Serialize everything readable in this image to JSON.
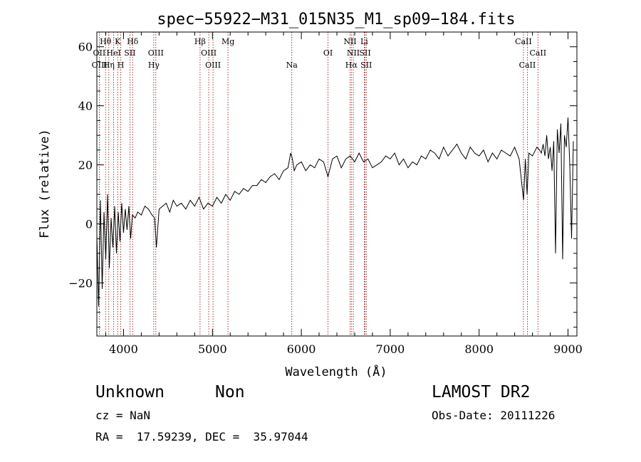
{
  "chart_data": {
    "type": "line",
    "title": "spec−55922−M31_015N35_M1_sp09−184.fits",
    "xlabel": "Wavelength (Å)",
    "ylabel": "Flux (relative)",
    "xlim": [
      3700,
      9100
    ],
    "ylim": [
      -38,
      65
    ],
    "xticks": [
      {
        "value": 4000,
        "label": "4000"
      },
      {
        "value": 5000,
        "label": "5000"
      },
      {
        "value": 6000,
        "label": "6000"
      },
      {
        "value": 7000,
        "label": "7000"
      },
      {
        "value": 8000,
        "label": "8000"
      },
      {
        "value": 9000,
        "label": "9000"
      }
    ],
    "yticks": [
      {
        "value": -20,
        "label": "−20"
      },
      {
        "value": 0,
        "label": "0"
      },
      {
        "value": 20,
        "label": "20"
      },
      {
        "value": 40,
        "label": "40"
      },
      {
        "value": 60,
        "label": "60"
      }
    ],
    "series": [
      {
        "x": [
          3700,
          3720,
          3740,
          3760,
          3780,
          3800,
          3820,
          3840,
          3860,
          3880,
          3900,
          3920,
          3940,
          3960,
          3980,
          4000,
          4020,
          4040,
          4060,
          4080,
          4100,
          4130,
          4160,
          4200,
          4240,
          4280,
          4320,
          4350,
          4370,
          4400,
          4440,
          4480,
          4520,
          4560,
          4600,
          4650,
          4700,
          4750,
          4800,
          4850,
          4900,
          4950,
          5000,
          5050,
          5100,
          5150,
          5200,
          5250,
          5300,
          5350,
          5400,
          5450,
          5500,
          5550,
          5600,
          5650,
          5700,
          5750,
          5800,
          5850,
          5880,
          5900,
          5920,
          5950,
          6000,
          6050,
          6100,
          6150,
          6200,
          6250,
          6300,
          6350,
          6400,
          6450,
          6500,
          6550,
          6600,
          6650,
          6700,
          6750,
          6800,
          6850,
          6900,
          6950,
          7000,
          7050,
          7100,
          7150,
          7200,
          7250,
          7300,
          7350,
          7400,
          7450,
          7500,
          7550,
          7600,
          7650,
          7700,
          7750,
          7800,
          7850,
          7900,
          7950,
          8000,
          8050,
          8100,
          8150,
          8200,
          8250,
          8300,
          8350,
          8400,
          8450,
          8500,
          8520,
          8540,
          8560,
          8600,
          8650,
          8680,
          8700,
          8720,
          8740,
          8760,
          8780,
          8800,
          8820,
          8840,
          8860,
          8880,
          8900,
          8920,
          8940,
          8960,
          8980,
          9000,
          9020,
          9040,
          9060
        ],
        "y": [
          -4,
          -28,
          8,
          -22,
          4,
          -12,
          10,
          -15,
          2,
          -8,
          6,
          -10,
          4,
          -6,
          7,
          -3,
          5,
          -2,
          6,
          -5,
          3,
          2,
          4,
          3,
          6,
          5,
          3,
          2,
          -8,
          5,
          6,
          7,
          4,
          8,
          6,
          7,
          5,
          8,
          6,
          9,
          5,
          7,
          6,
          9,
          7,
          10,
          8,
          11,
          10,
          12,
          11,
          13,
          13,
          15,
          14,
          16,
          17,
          15,
          18,
          19,
          24,
          22,
          18,
          20,
          21,
          18,
          20,
          19,
          22,
          21,
          16,
          22,
          23,
          19,
          22,
          23,
          21,
          24,
          21,
          22,
          19,
          20,
          21,
          23,
          22,
          24,
          20,
          22,
          19,
          21,
          20,
          23,
          22,
          25,
          24,
          22,
          26,
          23,
          25,
          27,
          24,
          22,
          26,
          24,
          23,
          25,
          21,
          24,
          22,
          25,
          24,
          23,
          26,
          22,
          8,
          22,
          10,
          24,
          23,
          26,
          25,
          24,
          27,
          23,
          30,
          22,
          26,
          18,
          28,
          -10,
          32,
          24,
          34,
          -12,
          30,
          26,
          36,
          20,
          -5,
          28
        ]
      }
    ],
    "line_labels": [
      {
        "label": "Hθ",
        "wavelength": 3798,
        "row": 1
      },
      {
        "label": "OII",
        "wavelength": 3727,
        "row": 2
      },
      {
        "label": "OIII",
        "wavelength": 3730,
        "row": 3
      },
      {
        "label": "Hη",
        "wavelength": 3835,
        "row": 3
      },
      {
        "label": "HeI",
        "wavelength": 3889,
        "row": 2
      },
      {
        "label": "K",
        "wavelength": 3934,
        "row": 1
      },
      {
        "label": "H",
        "wavelength": 3968,
        "row": 3
      },
      {
        "label": "SII",
        "wavelength": 4072,
        "row": 2
      },
      {
        "label": "Hδ",
        "wavelength": 4102,
        "row": 1
      },
      {
        "label": "OIII",
        "wavelength": 4363,
        "row": 2
      },
      {
        "label": "Hγ",
        "wavelength": 4340,
        "row": 3
      },
      {
        "label": "Hβ",
        "wavelength": 4861,
        "row": 1
      },
      {
        "label": "OIII",
        "wavelength": 4959,
        "row": 2
      },
      {
        "label": "OIII",
        "wavelength": 5007,
        "row": 3
      },
      {
        "label": "Mg",
        "wavelength": 5175,
        "row": 1
      },
      {
        "label": "Na",
        "wavelength": 5893,
        "row": 3
      },
      {
        "label": "OI",
        "wavelength": 6300,
        "row": 2
      },
      {
        "label": "NII",
        "wavelength": 6548,
        "row": 1
      },
      {
        "label": "NII",
        "wavelength": 6584,
        "row": 2
      },
      {
        "label": "Hα",
        "wavelength": 6563,
        "row": 3
      },
      {
        "label": "Li",
        "wavelength": 6708,
        "row": 1
      },
      {
        "label": "SII",
        "wavelength": 6717,
        "row": 2
      },
      {
        "label": "SII",
        "wavelength": 6731,
        "row": 3
      },
      {
        "label": "CaII",
        "wavelength": 8498,
        "row": 1
      },
      {
        "label": "CaII",
        "wavelength": 8662,
        "row": 2
      },
      {
        "label": "CaII",
        "wavelength": 8542,
        "row": 3
      }
    ],
    "line_markers": [
      3727,
      3798,
      3835,
      3889,
      3934,
      3968,
      4072,
      4102,
      4340,
      4363,
      4861,
      4959,
      5007,
      5175,
      5893,
      6300,
      6548,
      6563,
      6584,
      6708,
      6717,
      6731,
      8498,
      8542,
      8662
    ]
  },
  "footer": {
    "object_class": "Unknown",
    "subclass": "Non",
    "survey": "LAMOST DR2",
    "redshift": "cz = NaN",
    "obs_date": "Obs-Date: 20111226",
    "coords": "RA =  17.59239, DEC =  35.97044"
  }
}
